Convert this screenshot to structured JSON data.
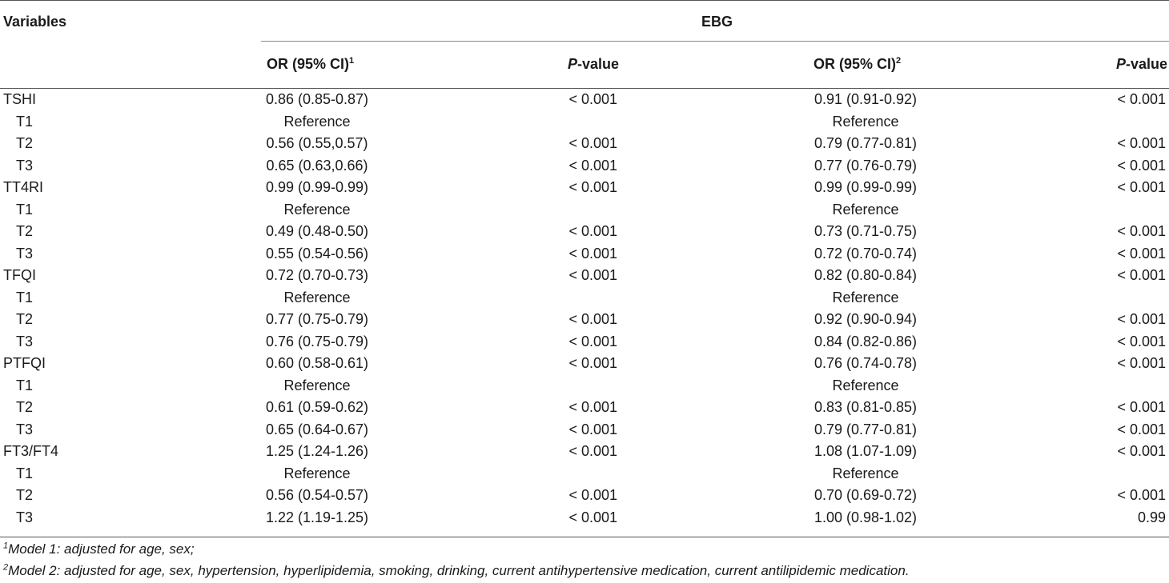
{
  "header": {
    "variables": "Variables",
    "group": "EBG",
    "or_label": "OR (95% CI)",
    "or1_sup": "1",
    "or2_sup": "2",
    "p_italic": "P",
    "p_rest": "-value"
  },
  "rows": [
    {
      "var": "TSHI",
      "sub": false,
      "or1": "0.86 (0.85-0.87)",
      "p1": "< 0.001",
      "or2": "0.91 (0.91-0.92)",
      "p2": "< 0.001"
    },
    {
      "var": "T1",
      "sub": true,
      "or1": "Reference",
      "p1": "",
      "or2": "Reference",
      "p2": ""
    },
    {
      "var": "T2",
      "sub": true,
      "or1": "0.56 (0.55,0.57)",
      "p1": "< 0.001",
      "or2": "0.79 (0.77-0.81)",
      "p2": "< 0.001"
    },
    {
      "var": "T3",
      "sub": true,
      "or1": "0.65 (0.63,0.66)",
      "p1": "< 0.001",
      "or2": "0.77 (0.76-0.79)",
      "p2": "< 0.001"
    },
    {
      "var": "TT4RI",
      "sub": false,
      "or1": "0.99 (0.99-0.99)",
      "p1": "< 0.001",
      "or2": "0.99 (0.99-0.99)",
      "p2": "< 0.001"
    },
    {
      "var": "T1",
      "sub": true,
      "or1": "Reference",
      "p1": "",
      "or2": "Reference",
      "p2": ""
    },
    {
      "var": "T2",
      "sub": true,
      "or1": "0.49 (0.48-0.50)",
      "p1": "< 0.001",
      "or2": "0.73 (0.71-0.75)",
      "p2": "< 0.001"
    },
    {
      "var": "T3",
      "sub": true,
      "or1": "0.55 (0.54-0.56)",
      "p1": "< 0.001",
      "or2": "0.72 (0.70-0.74)",
      "p2": "< 0.001"
    },
    {
      "var": "TFQI",
      "sub": false,
      "or1": "0.72 (0.70-0.73)",
      "p1": "< 0.001",
      "or2": "0.82 (0.80-0.84)",
      "p2": "< 0.001"
    },
    {
      "var": "T1",
      "sub": true,
      "or1": "Reference",
      "p1": "",
      "or2": "Reference",
      "p2": ""
    },
    {
      "var": "T2",
      "sub": true,
      "or1": "0.77 (0.75-0.79)",
      "p1": "< 0.001",
      "or2": "0.92 (0.90-0.94)",
      "p2": "< 0.001"
    },
    {
      "var": "T3",
      "sub": true,
      "or1": "0.76 (0.75-0.79)",
      "p1": "< 0.001",
      "or2": "0.84 (0.82-0.86)",
      "p2": "< 0.001"
    },
    {
      "var": "PTFQI",
      "sub": false,
      "or1": "0.60 (0.58-0.61)",
      "p1": "< 0.001",
      "or2": "0.76 (0.74-0.78)",
      "p2": "< 0.001"
    },
    {
      "var": "T1",
      "sub": true,
      "or1": "Reference",
      "p1": "",
      "or2": "Reference",
      "p2": ""
    },
    {
      "var": "T2",
      "sub": true,
      "or1": "0.61 (0.59-0.62)",
      "p1": "< 0.001",
      "or2": "0.83 (0.81-0.85)",
      "p2": "< 0.001"
    },
    {
      "var": "T3",
      "sub": true,
      "or1": "0.65 (0.64-0.67)",
      "p1": "< 0.001",
      "or2": "0.79 (0.77-0.81)",
      "p2": "< 0.001"
    },
    {
      "var": "FT3/FT4",
      "sub": false,
      "or1": "1.25 (1.24-1.26)",
      "p1": "< 0.001",
      "or2": "1.08 (1.07-1.09)",
      "p2": "< 0.001"
    },
    {
      "var": "T1",
      "sub": true,
      "or1": "Reference",
      "p1": "",
      "or2": "Reference",
      "p2": ""
    },
    {
      "var": "T2",
      "sub": true,
      "or1": "0.56 (0.54-0.57)",
      "p1": "< 0.001",
      "or2": "0.70 (0.69-0.72)",
      "p2": "< 0.001"
    },
    {
      "var": "T3",
      "sub": true,
      "or1": "1.22 (1.19-1.25)",
      "p1": "< 0.001",
      "or2": "1.00 (0.98-1.02)",
      "p2": "0.99"
    }
  ],
  "footnotes": [
    {
      "sup": "1",
      "text": "Model 1: adjusted for age, sex;"
    },
    {
      "sup": "2",
      "text": "Model 2: adjusted for age, sex, hypertension, hyperlipidemia, smoking, drinking, current antihypertensive medication, current antilipidemic medication."
    }
  ]
}
